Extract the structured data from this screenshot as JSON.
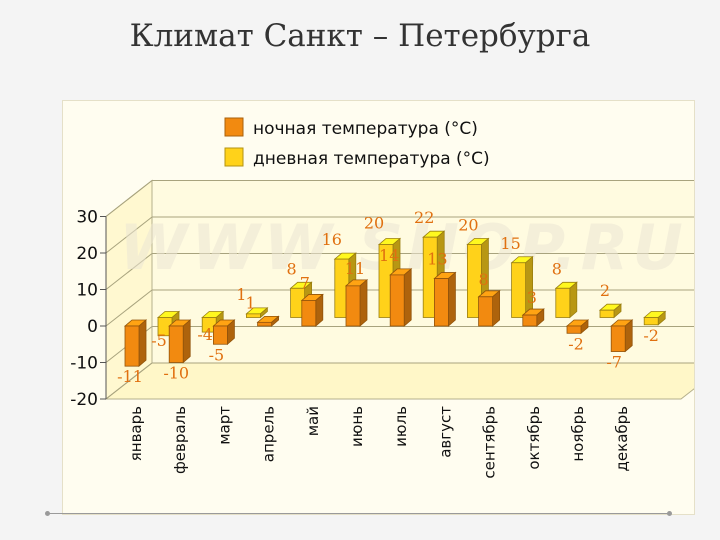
{
  "slide": {
    "title": "Климат Санкт – Петербурга"
  },
  "chart_data": {
    "type": "bar",
    "categories": [
      "январь",
      "февраль",
      "март",
      "апрель",
      "май",
      "июнь",
      "июль",
      "август",
      "сентябрь",
      "октябрь",
      "ноябрь",
      "декабрь"
    ],
    "series": [
      {
        "name": "ночная температура (°C)",
        "values": [
          -11,
          -10,
          -5,
          1,
          7,
          11,
          14,
          13,
          8,
          3,
          -2,
          -7
        ],
        "color": "#f28a10"
      },
      {
        "name": "дневная температура (°C)",
        "values": [
          -5,
          -4,
          1,
          8,
          16,
          20,
          22,
          20,
          15,
          8,
          2,
          -2
        ],
        "color": "#ffd21a"
      }
    ],
    "yticks": [
      "30",
      "20",
      "10",
      "0",
      "-10",
      "-20"
    ],
    "ylim": [
      -20,
      30
    ],
    "grid": true,
    "legend": "top",
    "watermark": "WWW.SHOP.RU"
  }
}
